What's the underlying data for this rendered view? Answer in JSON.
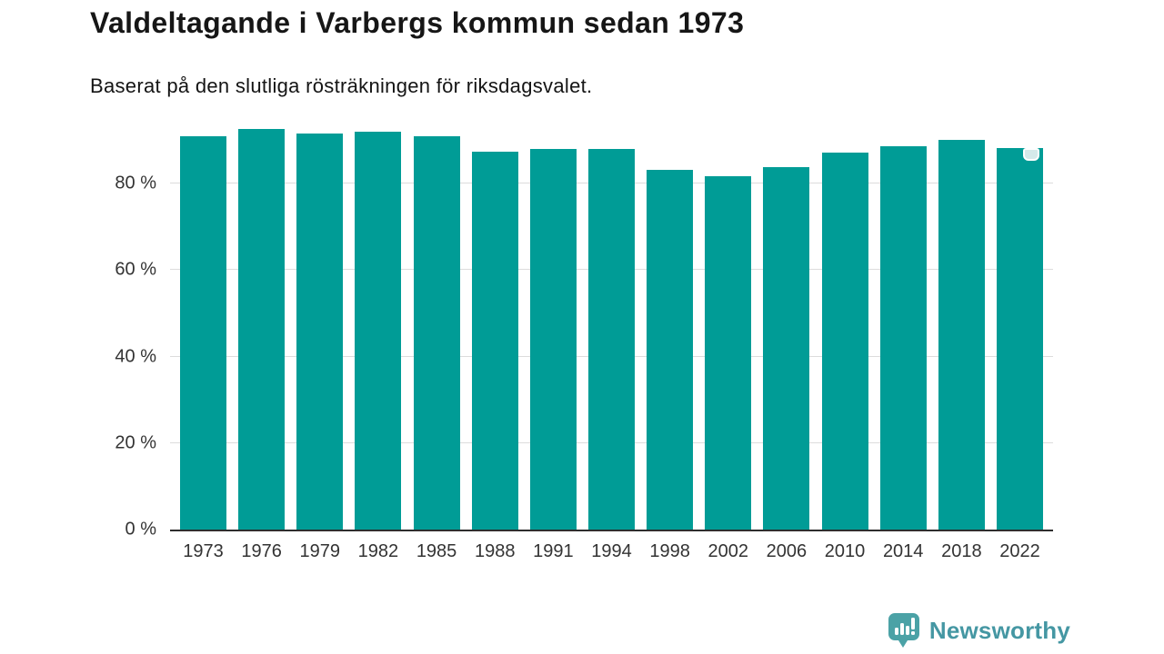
{
  "header": {
    "title": "Valdeltagande i Varbergs kommun sedan 1973",
    "subtitle": "Baserat på den slutliga rösträkningen för riksdagsvalet."
  },
  "chart_data": {
    "type": "bar",
    "title": "Valdeltagande i Varbergs kommun sedan 1973",
    "subtitle": "Baserat på den slutliga rösträkningen för riksdagsvalet.",
    "categories": [
      "1973",
      "1976",
      "1979",
      "1982",
      "1985",
      "1988",
      "1991",
      "1994",
      "1998",
      "2002",
      "2006",
      "2010",
      "2014",
      "2018",
      "2022"
    ],
    "values": [
      91.0,
      92.7,
      91.5,
      92.0,
      90.9,
      87.3,
      88.0,
      88.0,
      83.1,
      81.8,
      83.9,
      87.1,
      88.6,
      90.1,
      88.2
    ],
    "xlabel": "",
    "ylabel": "",
    "ylim": [
      0,
      100
    ],
    "yticks": [
      0,
      20,
      40,
      60,
      80
    ],
    "ytick_suffix": " %",
    "grid": true,
    "legend": "none",
    "bar_color": "#009C96",
    "grid_color": "#dcdcdc",
    "axis_color": "#2e2e2e",
    "badge_year": "2022"
  },
  "footer": {
    "brand": "Newsworthy",
    "brand_color": "#4597A3",
    "logo_color": "#4BA2A6"
  }
}
